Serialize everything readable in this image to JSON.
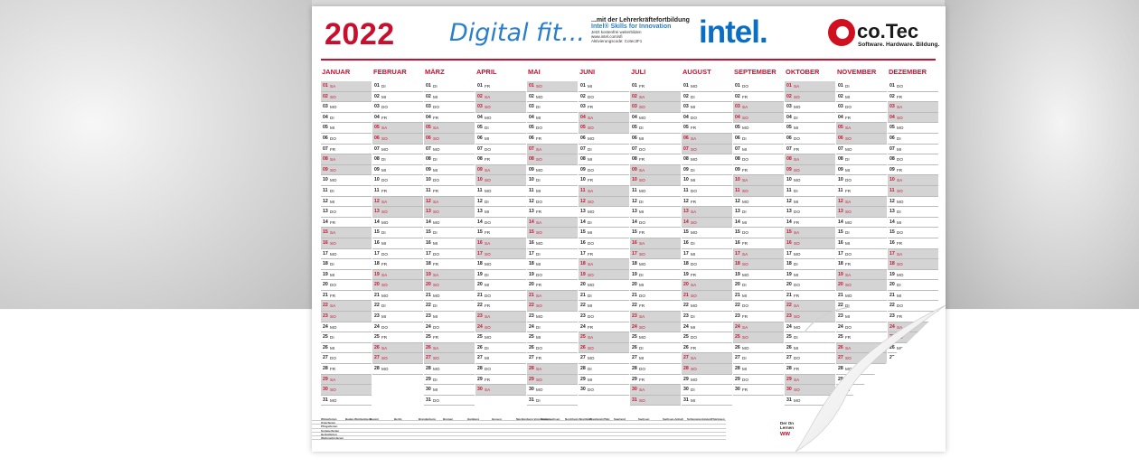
{
  "header": {
    "year": "2022",
    "slogan": "Digital fit...",
    "tagline": {
      "line1": "...mit der Lehrerkräftefortbildung",
      "line2": "Intel® Skills for Innovation",
      "line3": "Jetzt kostenfrei weiterbilden",
      "line4": "www.intel.com/sfi",
      "line5": "Aktivierungscode: Cotec3F1"
    },
    "intel_logo": "intel.",
    "cotec_name": "co.Tec",
    "cotec_sub": "Software. Hardware. Bildung."
  },
  "months": [
    {
      "name": "JANUAR",
      "start": 6,
      "days": 31
    },
    {
      "name": "FEBRUAR",
      "start": 2,
      "days": 28
    },
    {
      "name": "MÄRZ",
      "start": 2,
      "days": 31
    },
    {
      "name": "APRIL",
      "start": 5,
      "days": 30
    },
    {
      "name": "MAI",
      "start": 0,
      "days": 31
    },
    {
      "name": "JUNI",
      "start": 3,
      "days": 30
    },
    {
      "name": "JULI",
      "start": 5,
      "days": 31
    },
    {
      "name": "AUGUST",
      "start": 1,
      "days": 31
    },
    {
      "name": "SEPTEMBER",
      "start": 4,
      "days": 30
    },
    {
      "name": "OKTOBER",
      "start": 6,
      "days": 31
    },
    {
      "name": "NOVEMBER",
      "start": 2,
      "days": 30
    },
    {
      "name": "DEZEMBER",
      "start": 4,
      "days": 31
    }
  ],
  "weekday_abbr": [
    "SO",
    "MO",
    "DI",
    "MI",
    "DO",
    "FR",
    "SA"
  ],
  "holidays": {
    "head": [
      "Winterferien",
      "Baden-Württemberg",
      "Bayern",
      "Berlin",
      "Brandenburg",
      "Bremen",
      "Hamburg",
      "Hessen",
      "Mecklenburg-Vorpommern",
      "Niedersachsen",
      "Nordrhein-Westfalen",
      "Rheinland-Pfalz",
      "Saarland",
      "Sachsen",
      "Sachsen-Anhalt",
      "Schleswig-Holstein",
      "Thüringen"
    ],
    "rows": [
      "Osterferien",
      "Pfingstferien",
      "Sommerferien",
      "Herbstferien",
      "Weihnachtsferien"
    ]
  },
  "footer": {
    "note": "Der On",
    "note2": "Lernen",
    "url": "ww"
  }
}
